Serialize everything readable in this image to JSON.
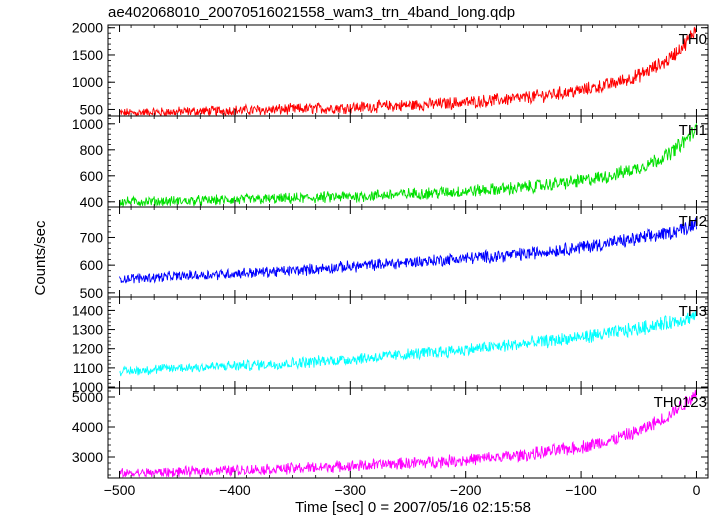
{
  "title": "ae402068010_20070516021558_wam3_trn_4band_long.qdp",
  "chart_data": {
    "type": "line",
    "title": "ae402068010_20070516021558_wam3_trn_4band_long.qdp",
    "xlabel": "Time [sec] 0 = 2007/05/16 02:15:58",
    "ylabel": "Counts/sec",
    "xlim": [
      -510,
      10
    ],
    "x_ticks": [
      -500,
      -400,
      -300,
      -200,
      -100,
      0
    ],
    "grid": false,
    "panels": [
      {
        "name": "TH0",
        "color": "#ff0000",
        "ylim": [
          380,
          2050
        ],
        "y_ticks": [
          500,
          1000,
          1500,
          2000
        ],
        "x": [
          -500,
          -450,
          -400,
          -350,
          -300,
          -250,
          -200,
          -150,
          -100,
          -75,
          -50,
          -25,
          -10,
          0
        ],
        "y": [
          430,
          455,
          480,
          505,
          535,
          575,
          630,
          710,
          850,
          960,
          1120,
          1400,
          1700,
          2000
        ]
      },
      {
        "name": "TH1",
        "color": "#00e000",
        "ylim": [
          360,
          1060
        ],
        "y_ticks": [
          400,
          600,
          800,
          1000
        ],
        "x": [
          -500,
          -450,
          -400,
          -350,
          -300,
          -250,
          -200,
          -150,
          -100,
          -75,
          -50,
          -25,
          -10,
          0
        ],
        "y": [
          400,
          405,
          415,
          425,
          440,
          460,
          480,
          510,
          560,
          600,
          660,
          760,
          870,
          960
        ]
      },
      {
        "name": "TH2",
        "color": "#0000ff",
        "ylim": [
          485,
          810
        ],
        "y_ticks": [
          500,
          600,
          700
        ],
        "x": [
          -500,
          -450,
          -400,
          -350,
          -300,
          -250,
          -200,
          -150,
          -100,
          -75,
          -50,
          -25,
          -10,
          0
        ],
        "y": [
          550,
          560,
          570,
          580,
          595,
          610,
          625,
          640,
          665,
          680,
          695,
          715,
          735,
          755
        ]
      },
      {
        "name": "TH3",
        "color": "#00ffff",
        "ylim": [
          995,
          1470
        ],
        "y_ticks": [
          1000,
          1100,
          1200,
          1300,
          1400
        ],
        "x": [
          -500,
          -450,
          -400,
          -350,
          -300,
          -250,
          -200,
          -150,
          -100,
          -75,
          -50,
          -25,
          -10,
          0
        ],
        "y": [
          1080,
          1100,
          1110,
          1125,
          1145,
          1170,
          1195,
          1225,
          1260,
          1280,
          1305,
          1335,
          1355,
          1370
        ]
      },
      {
        "name": "TH0123",
        "color": "#ff00ff",
        "ylim": [
          2300,
          5300
        ],
        "y_ticks": [
          3000,
          4000,
          5000
        ],
        "x": [
          -500,
          -450,
          -400,
          -350,
          -300,
          -250,
          -200,
          -150,
          -100,
          -75,
          -50,
          -25,
          -10,
          0
        ],
        "y": [
          2450,
          2500,
          2560,
          2620,
          2700,
          2790,
          2900,
          3060,
          3330,
          3550,
          3850,
          4350,
          4800,
          5150
        ]
      }
    ]
  }
}
